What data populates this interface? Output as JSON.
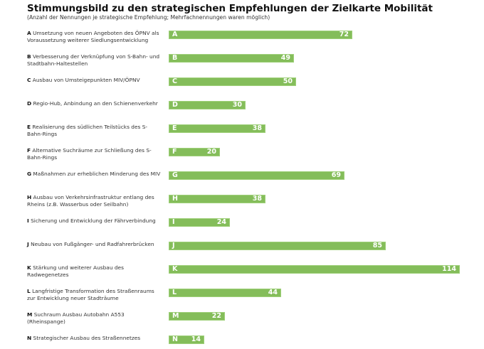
{
  "chart_data": {
    "type": "bar",
    "orientation": "horizontal",
    "title": "Stimmungsbild zu den strategischen Empfehlungen der Zielkarte Mobilität",
    "subtitle": "(Anzahl der Nennungen je strategische Empfehlung; Mehrfachnennungen waren möglich)",
    "xlabel": "",
    "ylabel": "",
    "xlim": [
      0,
      120
    ],
    "grid": false,
    "legend": "none",
    "bar_color": "#84bd5a",
    "categories": [
      {
        "letter": "A",
        "label": "Umsetzung von neuen Angeboten des ÖPNV als Voraussetzung weiterer Siedlungsentwicklung"
      },
      {
        "letter": "B",
        "label": "Verbesserung der Verknüpfung von S-Bahn- und Stadtbahn-Haltestellen"
      },
      {
        "letter": "C",
        "label": "Ausbau von Umsteigepunkten MIV/ÖPNV"
      },
      {
        "letter": "D",
        "label": "Regio-Hub, Anbindung an den Schienenverkehr"
      },
      {
        "letter": "E",
        "label": "Realisierung des südlichen Teilstücks des S-Bahn-Rings"
      },
      {
        "letter": "F",
        "label": "Alternative Suchräume zur Schließung des S-Bahn-Rings"
      },
      {
        "letter": "G",
        "label": "Maßnahmen zur erheblichen Minderung des MIV"
      },
      {
        "letter": "H",
        "label": "Ausbau von Verkehrsinfrastruktur entlang des Rheins (z.B. Wasserbus oder Seilbahn)"
      },
      {
        "letter": "I",
        "label": "Sicherung und Entwicklung der Fährverbindung"
      },
      {
        "letter": "J",
        "label": "Neubau von Fußgänger- und Radfahrerbrücken"
      },
      {
        "letter": "K",
        "label": "Stärkung und weiterer Ausbau des Radwegenetzes"
      },
      {
        "letter": "L",
        "label": "Langfristige Transformation des Straßenraums zur Entwicklung neuer Stadträume"
      },
      {
        "letter": "M",
        "label": "Suchraum Ausbau Autobahn A553 (Rheinspange)"
      },
      {
        "letter": "N",
        "label": "Strategischer Ausbau des Straßennetzes"
      }
    ],
    "values": [
      72,
      49,
      50,
      30,
      38,
      20,
      69,
      38,
      24,
      85,
      114,
      44,
      22,
      14
    ]
  }
}
